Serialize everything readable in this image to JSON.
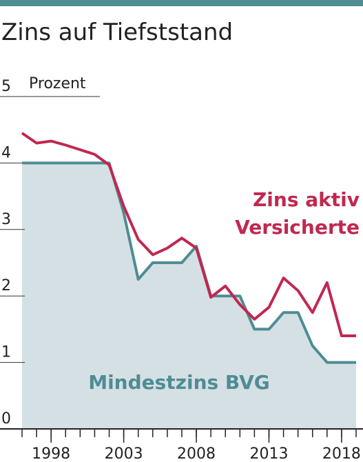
{
  "chart_data": {
    "type": "line",
    "title": "Zins auf Tiefststand",
    "y_label": "Prozent",
    "x": [
      1996,
      1997,
      1998,
      1999,
      2000,
      2001,
      2002,
      2003,
      2004,
      2005,
      2006,
      2007,
      2008,
      2009,
      2010,
      2011,
      2012,
      2013,
      2014,
      2015,
      2016,
      2017,
      2018,
      2019
    ],
    "series": [
      {
        "name": "Mindestzins BVG",
        "color": "#4f8c94",
        "area_color": "#d5e0e4",
        "values": [
          4,
          4,
          4,
          4,
          4,
          4,
          4,
          3.25,
          2.25,
          2.5,
          2.5,
          2.5,
          2.75,
          2,
          2,
          2,
          1.5,
          1.5,
          1.75,
          1.75,
          1.25,
          1,
          1,
          1
        ]
      },
      {
        "name": "Zins aktiv Versicherte",
        "color": "#c0284f",
        "values": [
          4.45,
          4.3,
          4.33,
          4.27,
          4.2,
          4.13,
          3.97,
          3.35,
          2.85,
          2.62,
          2.72,
          2.87,
          2.72,
          1.98,
          2.15,
          1.87,
          1.65,
          1.83,
          2.27,
          2.08,
          1.75,
          2.2,
          1.4,
          1.4
        ]
      }
    ],
    "xlim": [
      1996,
      2019
    ],
    "xticks": [
      1998,
      2003,
      2008,
      2013,
      2018
    ],
    "ylim": [
      0,
      5
    ],
    "yticks": [
      0,
      1,
      2,
      3,
      4,
      5
    ],
    "grid": true
  }
}
